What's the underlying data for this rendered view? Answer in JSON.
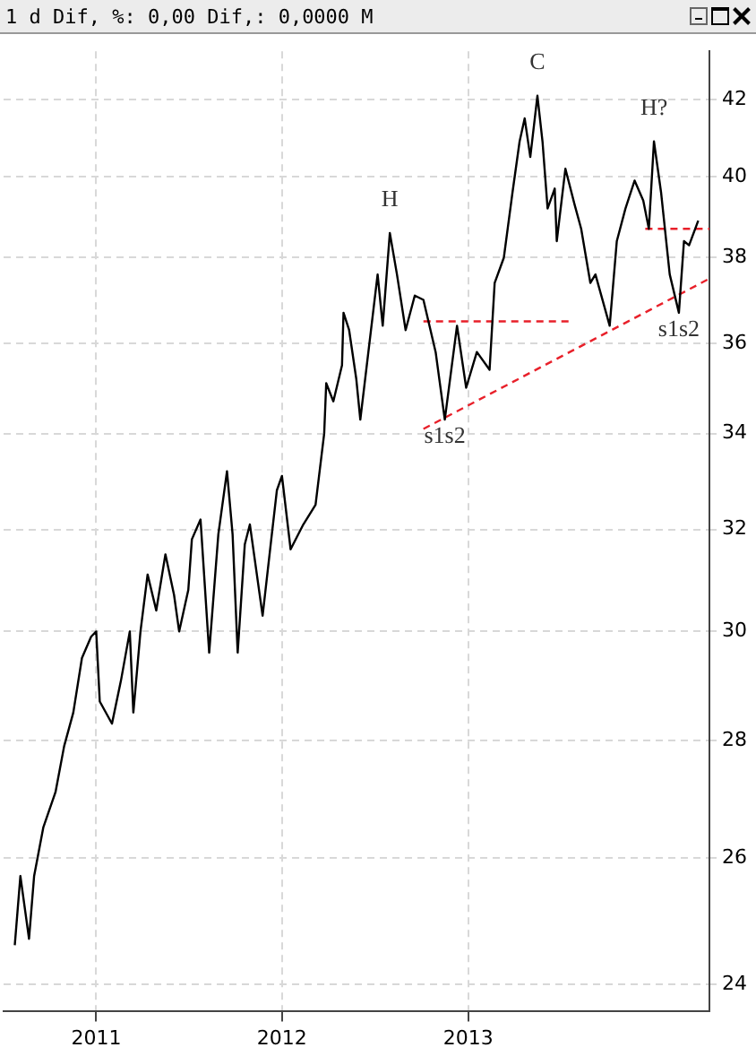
{
  "chart_data": {
    "type": "line",
    "title": "1 d Dif, %: 0,00 Dif,: 0,0000 M",
    "log": "y",
    "grid": true,
    "legend": false,
    "marker": "none",
    "xlim": [
      "2010-07-03",
      "2014-04-20"
    ],
    "ylim": [
      23.6,
      43.3
    ],
    "xticks": [
      {
        "value": "2011-01-01",
        "label": "2011"
      },
      {
        "value": "2012-01-01",
        "label": "2012"
      },
      {
        "value": "2013-01-01",
        "label": "2013"
      }
    ],
    "yticks": [
      24,
      26,
      28,
      30,
      32,
      34,
      36,
      38,
      40,
      42
    ],
    "series": [
      {
        "color": "#000000",
        "line_style": "solid",
        "x": [
          "2010-07-25",
          "2010-08-05",
          "2010-08-22",
          "2010-09-01",
          "2010-09-19",
          "2010-10-13",
          "2010-10-30",
          "2010-11-17",
          "2010-12-04",
          "2010-12-22",
          "2011-01-01",
          "2011-01-08",
          "2011-02-01",
          "2011-02-19",
          "2011-03-08",
          "2011-03-15",
          "2011-03-29",
          "2011-04-12",
          "2011-04-29",
          "2011-05-17",
          "2011-06-03",
          "2011-06-13",
          "2011-07-01",
          "2011-07-08",
          "2011-07-25",
          "2011-08-11",
          "2011-08-29",
          "2011-09-15",
          "2011-09-26",
          "2011-10-06",
          "2011-10-20",
          "2011-10-30",
          "2011-11-24",
          "2011-12-11",
          "2011-12-22",
          "2012-01-01",
          "2012-01-18",
          "2012-02-12",
          "2012-03-07",
          "2012-03-24",
          "2012-03-28",
          "2012-04-11",
          "2012-04-28",
          "2012-05-01",
          "2012-05-12",
          "2012-05-26",
          "2012-06-03",
          "2012-07-07",
          "2012-07-17",
          "2012-07-31",
          "2012-08-14",
          "2012-08-31",
          "2012-09-18",
          "2012-10-05",
          "2012-10-29",
          "2012-11-16",
          "2012-12-10",
          "2012-12-28",
          "2013-01-18",
          "2013-02-12",
          "2013-02-22",
          "2013-03-12",
          "2013-03-29",
          "2013-04-12",
          "2013-04-22",
          "2013-05-03",
          "2013-05-17",
          "2013-05-27",
          "2013-06-06",
          "2013-06-20",
          "2013-06-24",
          "2013-07-11",
          "2013-07-29",
          "2013-08-11",
          "2013-08-29",
          "2013-09-08",
          "2013-10-06",
          "2013-10-20",
          "2013-11-06",
          "2013-11-24",
          "2013-12-11",
          "2013-12-22",
          "2014-01-01",
          "2014-01-15",
          "2014-02-01",
          "2014-02-19",
          "2014-03-01",
          "2014-03-11",
          "2014-03-29"
        ],
        "values": [
          24.6,
          25.7,
          24.7,
          25.7,
          26.5,
          27.1,
          27.9,
          28.5,
          29.5,
          29.9,
          30.0,
          28.7,
          28.3,
          29.1,
          30.0,
          28.5,
          30.0,
          31.1,
          30.4,
          31.5,
          30.7,
          30.0,
          30.8,
          31.8,
          32.2,
          29.6,
          31.9,
          33.2,
          31.9,
          29.6,
          31.7,
          32.1,
          30.3,
          31.8,
          32.8,
          33.1,
          31.6,
          32.1,
          32.5,
          34.0,
          35.1,
          34.7,
          35.5,
          36.7,
          36.3,
          35.2,
          34.3,
          37.6,
          36.4,
          38.6,
          37.6,
          36.3,
          37.1,
          37.0,
          35.8,
          34.3,
          36.4,
          35.0,
          35.8,
          35.4,
          37.4,
          38.0,
          39.6,
          40.9,
          41.5,
          40.5,
          42.1,
          40.9,
          39.2,
          39.7,
          38.4,
          40.2,
          39.3,
          38.7,
          37.4,
          37.6,
          36.4,
          38.4,
          39.2,
          39.9,
          39.4,
          38.7,
          40.9,
          39.6,
          37.6,
          36.7,
          38.4,
          38.3,
          38.9
        ]
      },
      {
        "color": "#e8202a",
        "line_style": "dashed",
        "x": [
          "2012-10-05",
          "2013-07-26"
        ],
        "values": [
          36.5,
          36.5
        ]
      },
      {
        "color": "#e8202a",
        "line_style": "dashed",
        "x": [
          "2012-10-05",
          "2014-04-20"
        ],
        "values": [
          34.1,
          37.5
        ]
      },
      {
        "color": "#e8202a",
        "line_style": "dashed",
        "x": [
          "2013-12-15",
          "2014-04-20"
        ],
        "values": [
          38.7,
          38.7
        ]
      }
    ],
    "annotations": [
      {
        "text": "H",
        "x": "2012-07-31",
        "y": 38.6
      },
      {
        "text": "C",
        "x": "2013-05-17",
        "y": 42.1
      },
      {
        "text": "H?",
        "x": "2014-01-01",
        "y": 40.9
      },
      {
        "text": "s1s2",
        "x": "2012-11-16",
        "y": 34.3
      },
      {
        "text": "s1s2",
        "x": "2014-02-19",
        "y": 36.7
      }
    ]
  }
}
